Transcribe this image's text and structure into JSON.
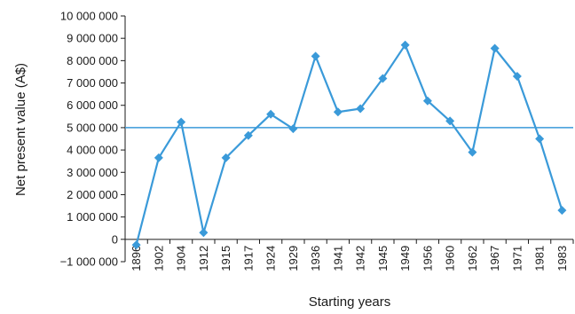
{
  "chart_data": {
    "type": "line",
    "title": "",
    "xlabel": "Starting years",
    "ylabel": "Net present value (A$)",
    "categories": [
      "1896",
      "1902",
      "1904",
      "1912",
      "1915",
      "1917",
      "1924",
      "1929",
      "1936",
      "1941",
      "1942",
      "1945",
      "1949",
      "1956",
      "1960",
      "1962",
      "1967",
      "1971",
      "1981",
      "1983"
    ],
    "series": [
      {
        "values": [
          -250000,
          3650000,
          5250000,
          300000,
          3650000,
          4650000,
          5600000,
          4950000,
          8200000,
          5700000,
          5850000,
          7200000,
          8700000,
          6200000,
          5300000,
          3900000,
          8550000,
          7300000,
          4500000,
          1300000
        ],
        "color": "#3a9ad9",
        "marker": "diamond"
      }
    ],
    "reference_line": {
      "value": 5000000,
      "color": "#3a9ad9"
    },
    "yticks": [
      -1000000,
      0,
      1000000,
      2000000,
      3000000,
      4000000,
      5000000,
      6000000,
      7000000,
      8000000,
      9000000,
      10000000
    ],
    "ytick_labels": [
      "−1 000 000",
      "0",
      "1 000 000",
      "2 000 000",
      "3 000 000",
      "4 000 000",
      "5 000 000",
      "6 000 000",
      "7 000 000",
      "8 000 000",
      "9 000 000",
      "10 000 000"
    ],
    "ylim": [
      -1000000,
      10000000
    ],
    "grid": false,
    "legend": "none"
  }
}
